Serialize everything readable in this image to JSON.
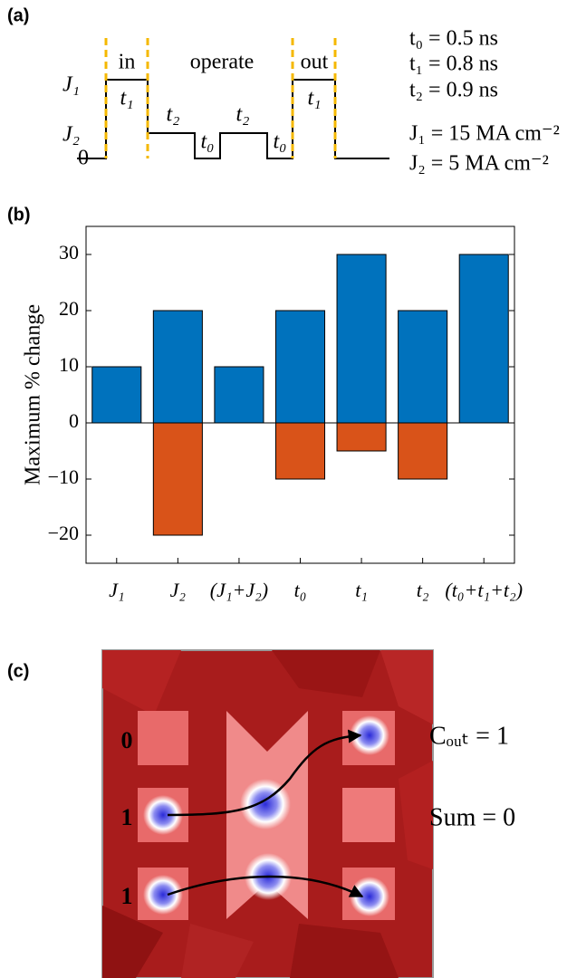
{
  "panel_a": {
    "label": "(a)",
    "phases": [
      "in",
      "operate",
      "out"
    ],
    "level_labels": [
      "J₁",
      "J₂",
      "0"
    ],
    "pulse_labels": [
      "t₁",
      "t₂",
      "t₀",
      "t₂",
      "t₀",
      "t₁"
    ],
    "parameters": [
      "t₀ = 0.5 ns",
      "t₁ = 0.8 ns",
      "t₂ = 0.9 ns",
      "J₁ = 15 MA cm⁻²",
      "J₂ = 5 MA cm⁻²"
    ]
  },
  "chart_data": {
    "type": "bar",
    "label": "(b)",
    "ylabel": "Maximum % change",
    "categories": [
      "J₁",
      "J₂",
      "(J₁+J₂)",
      "t₀",
      "t₁",
      "t₂",
      "(t₀+t₁+t₂)"
    ],
    "series": [
      {
        "color": "#0072bd",
        "values": [
          10,
          20,
          10,
          20,
          30,
          20,
          30
        ]
      },
      {
        "color": "#d95319",
        "values": [
          0,
          -20,
          0,
          -10,
          -5,
          -10,
          0
        ]
      }
    ],
    "ylim": [
      -25,
      35
    ],
    "yticks": [
      {
        "value": -20,
        "label": "−20"
      },
      {
        "value": -10,
        "label": "−10"
      },
      0,
      10,
      20,
      30
    ]
  },
  "panel_c": {
    "label": "(c)",
    "inputs": [
      "0",
      "1",
      "1"
    ],
    "outputs": [
      "Cₒᵤₜ = 1",
      "Sum = 0"
    ]
  }
}
